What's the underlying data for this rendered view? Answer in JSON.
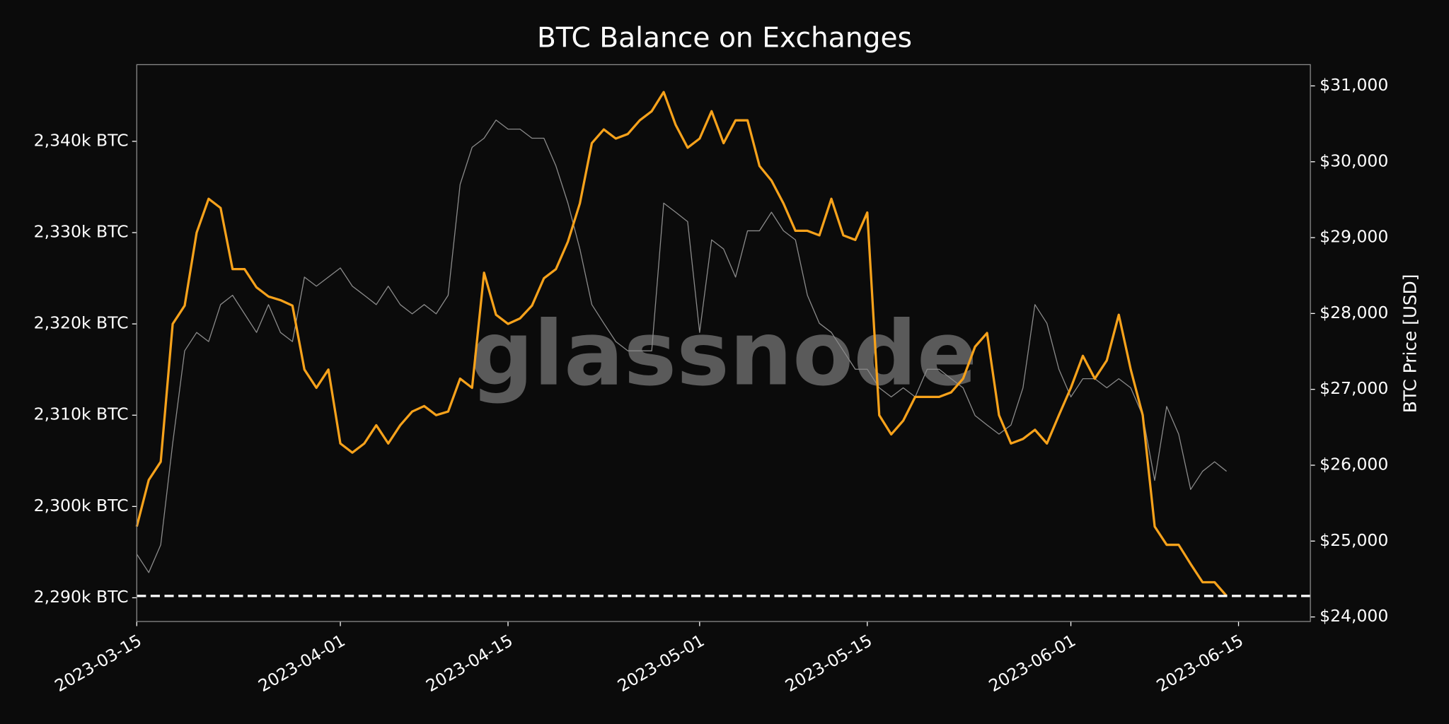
{
  "chart_data": {
    "type": "line",
    "title": "BTC Balance on Exchanges",
    "watermark": "glassnode",
    "y2_label": "BTC Price [USD]",
    "x": [
      "2023-03-15",
      "2023-03-16",
      "2023-03-17",
      "2023-03-18",
      "2023-03-19",
      "2023-03-20",
      "2023-03-21",
      "2023-03-22",
      "2023-03-23",
      "2023-03-24",
      "2023-03-25",
      "2023-03-26",
      "2023-03-27",
      "2023-03-28",
      "2023-03-29",
      "2023-03-30",
      "2023-03-31",
      "2023-04-01",
      "2023-04-02",
      "2023-04-03",
      "2023-04-04",
      "2023-04-05",
      "2023-04-06",
      "2023-04-07",
      "2023-04-08",
      "2023-04-09",
      "2023-04-10",
      "2023-04-11",
      "2023-04-12",
      "2023-04-13",
      "2023-04-14",
      "2023-04-15",
      "2023-04-16",
      "2023-04-17",
      "2023-04-18",
      "2023-04-19",
      "2023-04-20",
      "2023-04-21",
      "2023-04-22",
      "2023-04-23",
      "2023-04-24",
      "2023-04-25",
      "2023-04-26",
      "2023-04-27",
      "2023-04-28",
      "2023-04-29",
      "2023-04-30",
      "2023-05-01",
      "2023-05-02",
      "2023-05-03",
      "2023-05-04",
      "2023-05-05",
      "2023-05-06",
      "2023-05-07",
      "2023-05-08",
      "2023-05-09",
      "2023-05-10",
      "2023-05-11",
      "2023-05-12",
      "2023-05-13",
      "2023-05-14",
      "2023-05-15",
      "2023-05-16",
      "2023-05-17",
      "2023-05-18",
      "2023-05-19",
      "2023-05-20",
      "2023-05-21",
      "2023-05-22",
      "2023-05-23",
      "2023-05-24",
      "2023-05-25",
      "2023-05-26",
      "2023-05-27",
      "2023-05-28",
      "2023-05-29",
      "2023-05-30",
      "2023-05-31",
      "2023-06-01",
      "2023-06-02",
      "2023-06-03",
      "2023-06-04",
      "2023-06-05",
      "2023-06-06",
      "2023-06-07",
      "2023-06-08",
      "2023-06-09",
      "2023-06-10",
      "2023-06-11",
      "2023-06-12",
      "2023-06-13",
      "2023-06-14"
    ],
    "series": [
      {
        "name": "BTC Price",
        "axis": "y2",
        "color": "#8a8a8a",
        "width": 1,
        "values": [
          24828,
          24585,
          24950,
          26290,
          27508,
          27750,
          27630,
          28117,
          28240,
          27995,
          27750,
          28117,
          27750,
          27630,
          28480,
          28360,
          28480,
          28600,
          28360,
          28240,
          28117,
          28360,
          28117,
          27995,
          28117,
          27995,
          28240,
          29700,
          30190,
          30310,
          30550,
          30430,
          30430,
          30310,
          30310,
          29945,
          29455,
          28850,
          28117,
          27870,
          27630,
          27508,
          27508,
          27508,
          29455,
          29335,
          29210,
          27750,
          28970,
          28850,
          28480,
          29090,
          29090,
          29335,
          29090,
          28970,
          28240,
          27870,
          27750,
          27508,
          27265,
          27265,
          27020,
          26900,
          27020,
          26900,
          27265,
          27265,
          27140,
          27020,
          26655,
          26530,
          26410,
          26530,
          27020,
          28117,
          27870,
          27265,
          26900,
          27140,
          27140,
          27020,
          27140,
          27020,
          26655,
          25800,
          26775,
          26410,
          25680,
          25920,
          26045,
          25920
        ]
      },
      {
        "name": "BTC Balance on Exchanges",
        "axis": "y",
        "color": "#f7a21b",
        "width": 2.5,
        "values": [
          2297.8,
          2302.9,
          2304.9,
          2320,
          2322,
          2330,
          2333.7,
          2332.7,
          2326,
          2326,
          2324,
          2323,
          2322.6,
          2322,
          2315,
          2313,
          2315,
          2306.9,
          2305.9,
          2306.9,
          2308.9,
          2306.9,
          2308.9,
          2310.4,
          2311,
          2310,
          2310.4,
          2314,
          2313,
          2325.6,
          2321,
          2320,
          2320.6,
          2322,
          2325,
          2326,
          2329,
          2333.2,
          2339.8,
          2341.3,
          2340.3,
          2340.8,
          2342.3,
          2343.3,
          2345.4,
          2341.8,
          2339.3,
          2340.3,
          2343.3,
          2339.8,
          2342.3,
          2342.3,
          2337.3,
          2335.7,
          2333.2,
          2330.2,
          2330.2,
          2329.7,
          2333.7,
          2329.7,
          2329.2,
          2332.2,
          2310,
          2307.9,
          2309.4,
          2312,
          2312,
          2312,
          2312.5,
          2314,
          2317.5,
          2319,
          2310,
          2306.9,
          2307.4,
          2308.4,
          2306.9,
          2310,
          2313,
          2316.5,
          2314,
          2316,
          2321,
          2315,
          2310,
          2297.8,
          2295.8,
          2295.8,
          2293.7,
          2291.7,
          2291.7,
          2290.2
        ]
      }
    ],
    "reference_line": 2290.2,
    "reference_color": "#ffffff",
    "xlim": [
      "2023-03-15",
      "2023-06-21"
    ],
    "xticks": [
      "2023-03-15",
      "2023-04-01",
      "2023-04-15",
      "2023-05-01",
      "2023-05-15",
      "2023-06-01",
      "2023-06-15"
    ],
    "ylim": [
      2287.4,
      2348.4
    ],
    "yticks": [
      {
        "value": 2290,
        "label": "2,290k BTC"
      },
      {
        "value": 2300,
        "label": "2,300k BTC"
      },
      {
        "value": 2310,
        "label": "2,310k BTC"
      },
      {
        "value": 2320,
        "label": "2,320k BTC"
      },
      {
        "value": 2330,
        "label": "2,330k BTC"
      },
      {
        "value": 2340,
        "label": "2,340k BTC"
      }
    ],
    "y2lim": [
      23940,
      31280
    ],
    "y2ticks": [
      {
        "value": 24000,
        "label": "$24,000"
      },
      {
        "value": 25000,
        "label": "$25,000"
      },
      {
        "value": 26000,
        "label": "$26,000"
      },
      {
        "value": 27000,
        "label": "$27,000"
      },
      {
        "value": 28000,
        "label": "$28,000"
      },
      {
        "value": 29000,
        "label": "$29,000"
      },
      {
        "value": 30000,
        "label": "$30,000"
      },
      {
        "value": 31000,
        "label": "$31,000"
      }
    ],
    "grid": false
  }
}
